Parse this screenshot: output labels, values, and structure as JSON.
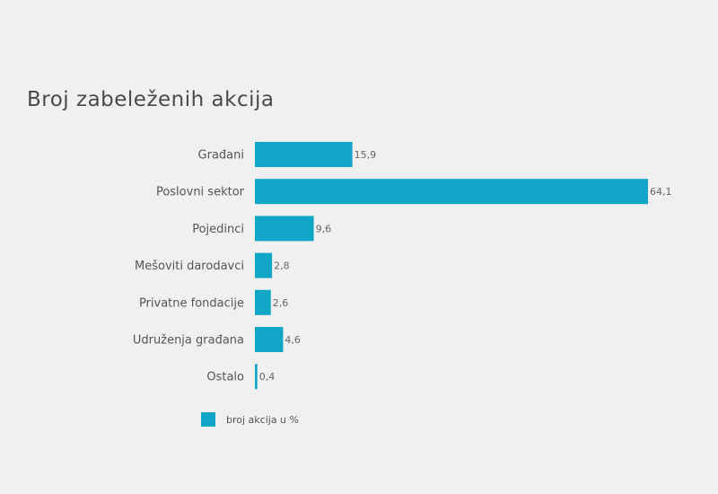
{
  "title": "Broj zabeleženih akcija",
  "colors": {
    "bar": "#12a6c6",
    "background": "#f0f0f0"
  },
  "chart_data": {
    "type": "bar",
    "orientation": "horizontal",
    "title": "Broj zabeleženih akcija",
    "categories": [
      "Građani",
      "Poslovni sektor",
      "Pojedinci",
      "Mešoviti darodavci",
      "Privatne fondacije",
      "Udruženja građana",
      "Ostalo"
    ],
    "series": [
      {
        "name": "broj akcija u %",
        "values": [
          15.9,
          64.1,
          9.6,
          2.8,
          2.6,
          4.6,
          0.4
        ],
        "labels": [
          "15,9",
          "64,1",
          "9,6",
          "2,8",
          "2,6",
          "4,6",
          "0,4"
        ]
      }
    ],
    "xlim": [
      0,
      64.1
    ],
    "grid": false,
    "legend_position": "bottom-left"
  }
}
